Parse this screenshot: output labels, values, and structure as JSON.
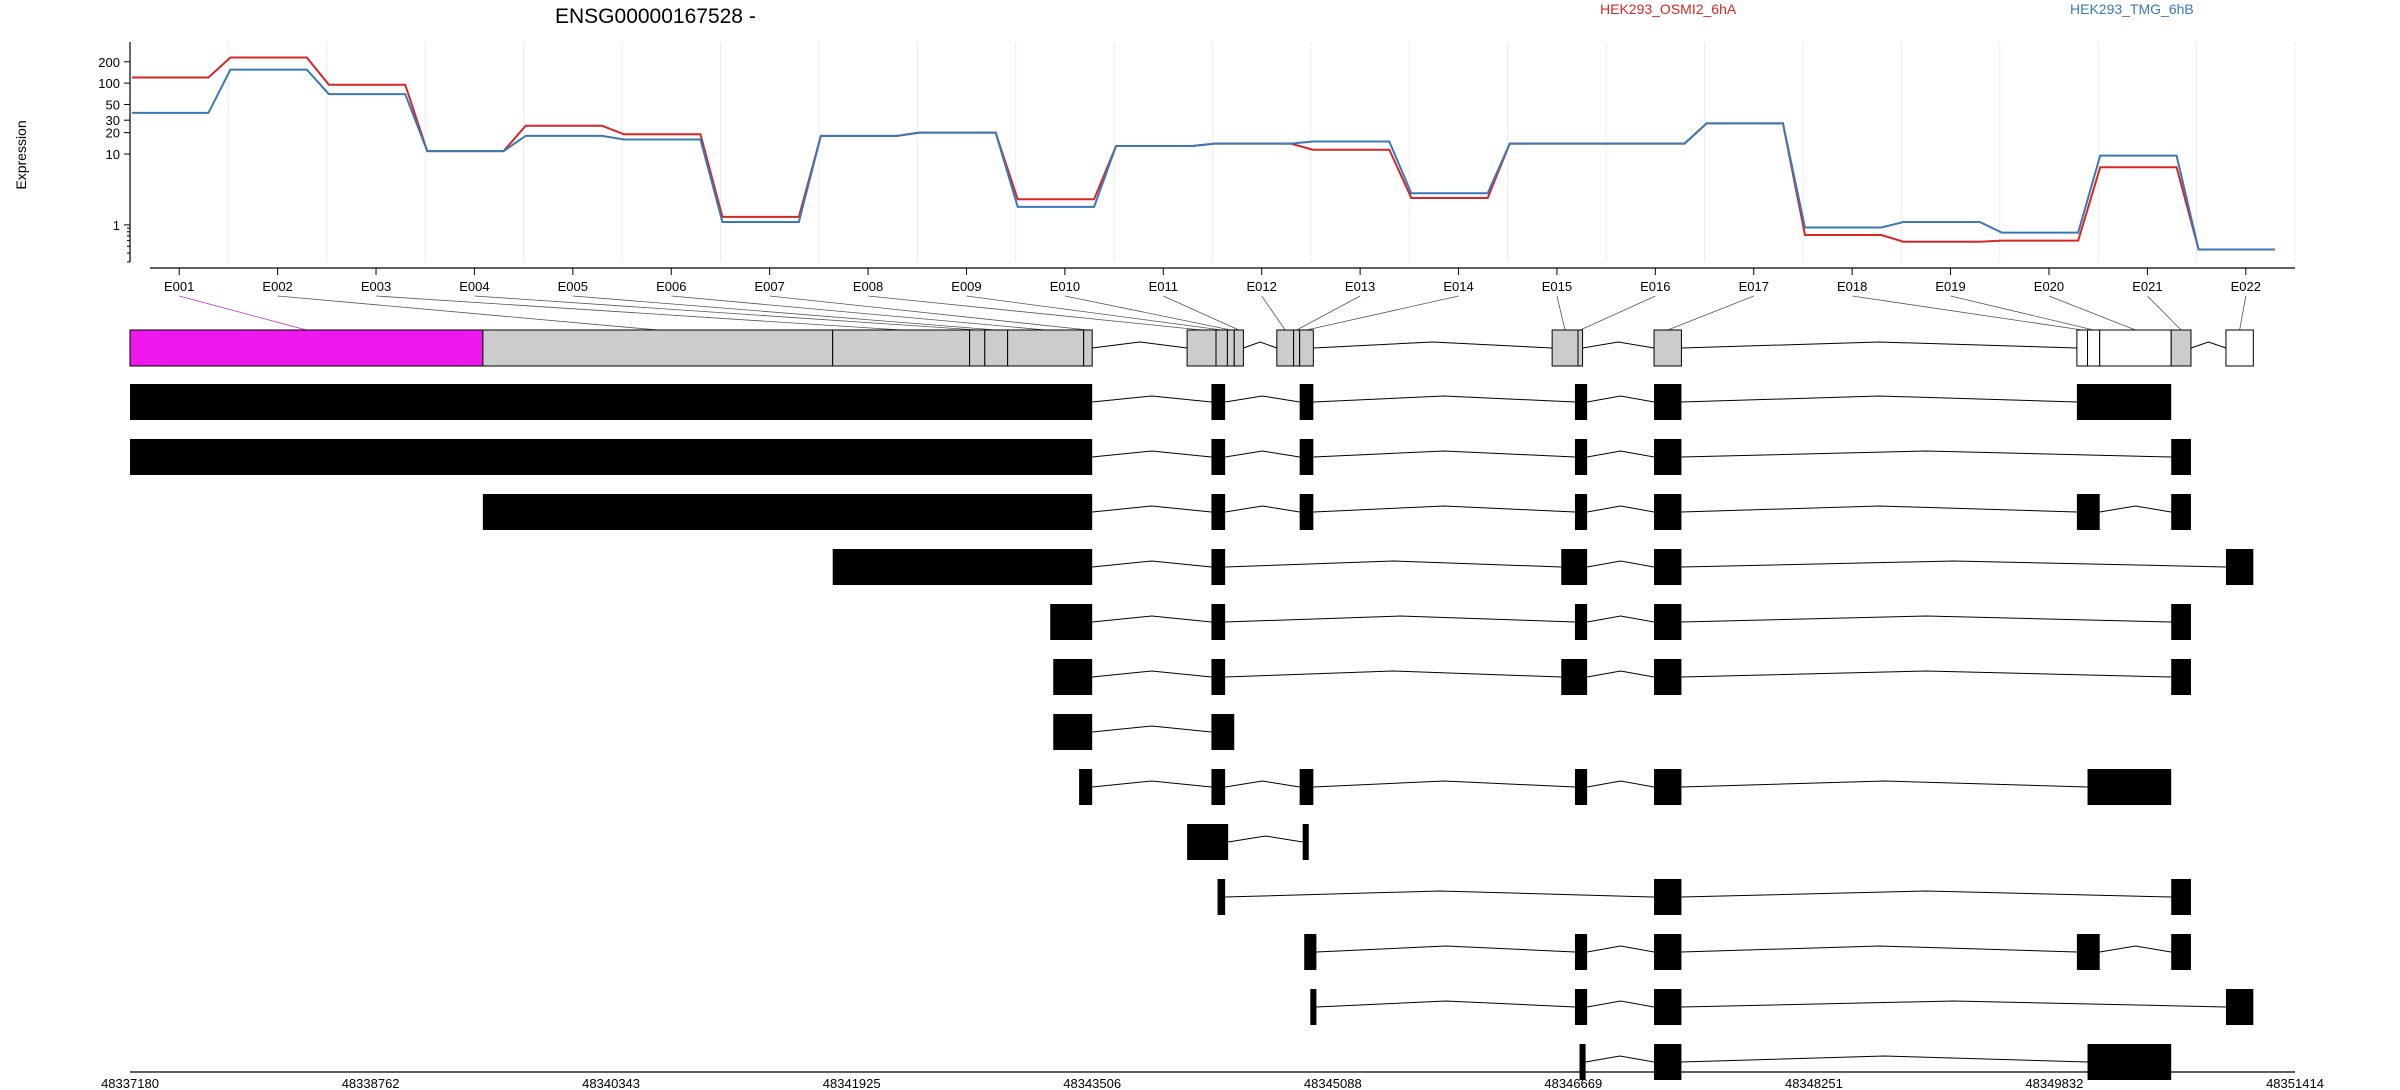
{
  "chart_data": {
    "type": "line",
    "title": "ENSG00000167528 -",
    "ylabel": "Expression",
    "yscale": "log",
    "ylim": [
      0.3,
      380
    ],
    "yticks": [
      "200",
      "100",
      "50",
      "30",
      "20",
      "10",
      "1"
    ],
    "categories": [
      "E001",
      "E002",
      "E003",
      "E004",
      "E005",
      "E006",
      "E007",
      "E008",
      "E009",
      "E010",
      "E011",
      "E012",
      "E013",
      "E014",
      "E015",
      "E016",
      "E017",
      "E018",
      "E019",
      "E020",
      "E021",
      "E022"
    ],
    "series": [
      {
        "name": "HEK293_OSMI2_6hA",
        "color": "#d62728",
        "values": [
          120,
          230,
          95,
          11,
          25,
          19,
          1.3,
          18,
          20,
          2.3,
          13,
          14,
          11.5,
          2.4,
          14,
          14,
          27,
          0.72,
          0.58,
          0.6,
          6.5,
          0.45
        ]
      },
      {
        "name": "HEK293_TMG_6hB",
        "color": "#3a78b8",
        "values": [
          38,
          155,
          70,
          11,
          18,
          16,
          1.1,
          18,
          20,
          1.8,
          13,
          14,
          15,
          2.8,
          14,
          14,
          27,
          0.92,
          1.1,
          0.78,
          9.5,
          0.45
        ]
      }
    ],
    "exons": [
      {
        "id": "E001",
        "start": 48337180,
        "end": 48339500,
        "fill": "#ee18ee"
      },
      {
        "id": "E002",
        "start": 48339500,
        "end": 48341800,
        "fill": "#cccccc"
      },
      {
        "id": "E003",
        "start": 48341800,
        "end": 48342700,
        "fill": "#cccccc"
      },
      {
        "id": "E004",
        "start": 48342700,
        "end": 48342800,
        "fill": "#cccccc"
      },
      {
        "id": "E005",
        "start": 48342800,
        "end": 48342950,
        "fill": "#cccccc"
      },
      {
        "id": "E006",
        "start": 48342950,
        "end": 48343450,
        "fill": "#cccccc"
      },
      {
        "id": "E007",
        "start": 48343450,
        "end": 48343506,
        "fill": "#cccccc"
      },
      {
        "id": "E008",
        "start": 48344130,
        "end": 48344320,
        "fill": "#cccccc"
      },
      {
        "id": "E009",
        "start": 48344320,
        "end": 48344395,
        "fill": "#cccccc"
      },
      {
        "id": "E010",
        "start": 48344395,
        "end": 48344440,
        "fill": "#cccccc"
      },
      {
        "id": "E011",
        "start": 48344440,
        "end": 48344500,
        "fill": "#cccccc"
      },
      {
        "id": "E012",
        "start": 48344720,
        "end": 48344830,
        "fill": "#cccccc"
      },
      {
        "id": "E013",
        "start": 48344830,
        "end": 48344870,
        "fill": "#cccccc"
      },
      {
        "id": "E014",
        "start": 48344870,
        "end": 48344960,
        "fill": "#cccccc"
      },
      {
        "id": "E015",
        "start": 48346530,
        "end": 48346700,
        "fill": "#cccccc"
      },
      {
        "id": "E016",
        "start": 48346700,
        "end": 48346730,
        "fill": "#cccccc"
      },
      {
        "id": "E017",
        "start": 48347200,
        "end": 48347380,
        "fill": "#cccccc"
      },
      {
        "id": "E018",
        "start": 48349980,
        "end": 48350050,
        "fill": "#ffffff"
      },
      {
        "id": "E019",
        "start": 48350050,
        "end": 48350130,
        "fill": "#ffffff"
      },
      {
        "id": "E020",
        "start": 48350130,
        "end": 48350600,
        "fill": "#ffffff"
      },
      {
        "id": "E021",
        "start": 48350600,
        "end": 48350730,
        "fill": "#cccccc"
      },
      {
        "id": "E022",
        "start": 48350960,
        "end": 48351140,
        "fill": "#ffffff"
      }
    ],
    "transcripts": [
      [
        [
          48337180,
          48343506
        ],
        [
          48344290,
          48344380
        ],
        [
          48344870,
          48344960
        ],
        [
          48346680,
          48346760
        ],
        [
          48347200,
          48347380
        ],
        [
          48349980,
          48350600
        ]
      ],
      [
        [
          48337180,
          48343506
        ],
        [
          48344290,
          48344380
        ],
        [
          48344870,
          48344960
        ],
        [
          48346680,
          48346760
        ],
        [
          48347200,
          48347380
        ],
        [
          48350600,
          48350730
        ]
      ],
      [
        [
          48339500,
          48343506
        ],
        [
          48344290,
          48344380
        ],
        [
          48344870,
          48344960
        ],
        [
          48346680,
          48346760
        ],
        [
          48347200,
          48347380
        ],
        [
          48349980,
          48350130
        ],
        [
          48350600,
          48350730
        ]
      ],
      [
        [
          48341800,
          48343506
        ],
        [
          48344290,
          48344380
        ],
        [
          48346590,
          48346760
        ],
        [
          48347200,
          48347380
        ],
        [
          48350960,
          48351140
        ]
      ],
      [
        [
          48343230,
          48343506
        ],
        [
          48344290,
          48344380
        ],
        [
          48346680,
          48346760
        ],
        [
          48347200,
          48347380
        ],
        [
          48350600,
          48350730
        ]
      ],
      [
        [
          48343250,
          48343506
        ],
        [
          48344290,
          48344380
        ],
        [
          48346590,
          48346760
        ],
        [
          48347200,
          48347380
        ],
        [
          48350600,
          48350730
        ]
      ],
      [
        [
          48343250,
          48343506
        ],
        [
          48344290,
          48344440
        ]
      ],
      [
        [
          48343420,
          48343506
        ],
        [
          48344290,
          48344380
        ],
        [
          48344870,
          48344960
        ],
        [
          48346680,
          48346760
        ],
        [
          48347200,
          48347380
        ],
        [
          48350050,
          48350600
        ]
      ],
      [
        [
          48344130,
          48344400
        ],
        [
          48344890,
          48344930
        ]
      ],
      [
        [
          48344330,
          48344380
        ],
        [
          48347200,
          48347380
        ],
        [
          48350600,
          48350730
        ]
      ],
      [
        [
          48344900,
          48344980
        ],
        [
          48346680,
          48346760
        ],
        [
          48347200,
          48347380
        ],
        [
          48349980,
          48350130
        ],
        [
          48350600,
          48350730
        ]
      ],
      [
        [
          48344940,
          48344980
        ],
        [
          48346680,
          48346760
        ],
        [
          48347200,
          48347380
        ],
        [
          48350960,
          48351140
        ]
      ],
      [
        [
          48346710,
          48346750
        ],
        [
          48347200,
          48347380
        ],
        [
          48350050,
          48350600
        ]
      ]
    ],
    "xrange": [
      48337180,
      48351414
    ],
    "xticks": [
      "48337180",
      "48338762",
      "48340343",
      "48341925",
      "48343506",
      "48345088",
      "48346669",
      "48348251",
      "48349832",
      "48351414"
    ],
    "grid": true,
    "legend_position": "top"
  }
}
